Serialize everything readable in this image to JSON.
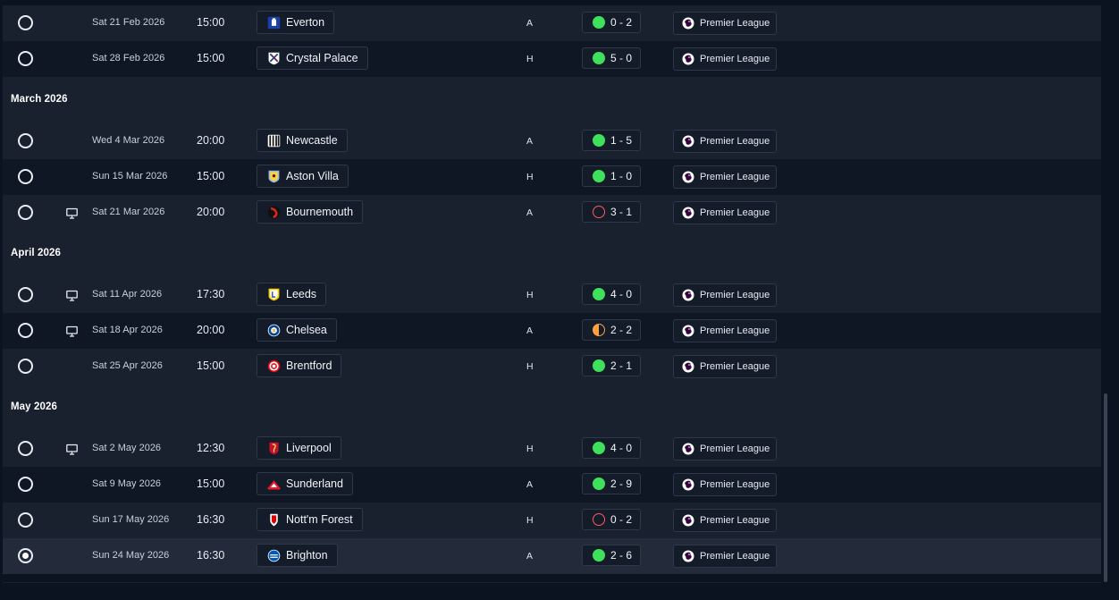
{
  "competition_label": "Premier League",
  "sections": [
    {
      "month": "",
      "fixtures": [
        {
          "date": "Sat 21 Feb 2026",
          "time": "15:00",
          "opponent": "Everton",
          "crest": "everton-crest-icon",
          "venue": "A",
          "result": "win",
          "score": "0 - 2",
          "tv": false,
          "selected": false
        },
        {
          "date": "Sat 28 Feb 2026",
          "time": "15:00",
          "opponent": "Crystal Palace",
          "crest": "crystal-palace-crest-icon",
          "venue": "H",
          "result": "win",
          "score": "5 - 0",
          "tv": false,
          "selected": false
        }
      ]
    },
    {
      "month": "March 2026",
      "fixtures": [
        {
          "date": "Wed 4 Mar 2026",
          "time": "20:00",
          "opponent": "Newcastle",
          "crest": "newcastle-crest-icon",
          "venue": "A",
          "result": "win",
          "score": "1 - 5",
          "tv": false,
          "selected": false
        },
        {
          "date": "Sun 15 Mar 2026",
          "time": "15:00",
          "opponent": "Aston Villa",
          "crest": "aston-villa-crest-icon",
          "venue": "H",
          "result": "win",
          "score": "1 - 0",
          "tv": false,
          "selected": false
        },
        {
          "date": "Sat 21 Mar 2026",
          "time": "20:00",
          "opponent": "Bournemouth",
          "crest": "bournemouth-crest-icon",
          "venue": "A",
          "result": "loss",
          "score": "3 - 1",
          "tv": true,
          "selected": false
        }
      ]
    },
    {
      "month": "April 2026",
      "fixtures": [
        {
          "date": "Sat 11 Apr 2026",
          "time": "17:30",
          "opponent": "Leeds",
          "crest": "leeds-crest-icon",
          "venue": "H",
          "result": "win",
          "score": "4 - 0",
          "tv": true,
          "selected": false
        },
        {
          "date": "Sat 18 Apr 2026",
          "time": "20:00",
          "opponent": "Chelsea",
          "crest": "chelsea-crest-icon",
          "venue": "A",
          "result": "draw",
          "score": "2 - 2",
          "tv": true,
          "selected": false
        },
        {
          "date": "Sat 25 Apr 2026",
          "time": "15:00",
          "opponent": "Brentford",
          "crest": "brentford-crest-icon",
          "venue": "H",
          "result": "win",
          "score": "2 - 1",
          "tv": false,
          "selected": false
        }
      ]
    },
    {
      "month": "May 2026",
      "fixtures": [
        {
          "date": "Sat 2 May 2026",
          "time": "12:30",
          "opponent": "Liverpool",
          "crest": "liverpool-crest-icon",
          "venue": "H",
          "result": "win",
          "score": "4 - 0",
          "tv": true,
          "selected": false
        },
        {
          "date": "Sat 9 May 2026",
          "time": "15:00",
          "opponent": "Sunderland",
          "crest": "sunderland-crest-icon",
          "venue": "A",
          "result": "win",
          "score": "2 - 9",
          "tv": false,
          "selected": false
        },
        {
          "date": "Sun 17 May 2026",
          "time": "16:30",
          "opponent": "Nott'm Forest",
          "crest": "nottm-forest-crest-icon",
          "venue": "H",
          "result": "loss",
          "score": "0 - 2",
          "tv": false,
          "selected": false
        },
        {
          "date": "Sun 24 May 2026",
          "time": "16:30",
          "opponent": "Brighton",
          "crest": "brighton-crest-icon",
          "venue": "A",
          "result": "win",
          "score": "2 - 6",
          "tv": false,
          "selected": true
        }
      ]
    }
  ],
  "colors": {
    "background": "#0b1220",
    "row": "#19202e",
    "row_alt": "#0f1624",
    "win": "#3fe05c",
    "loss": "#ff5a5f",
    "draw": "#ff9f43"
  }
}
